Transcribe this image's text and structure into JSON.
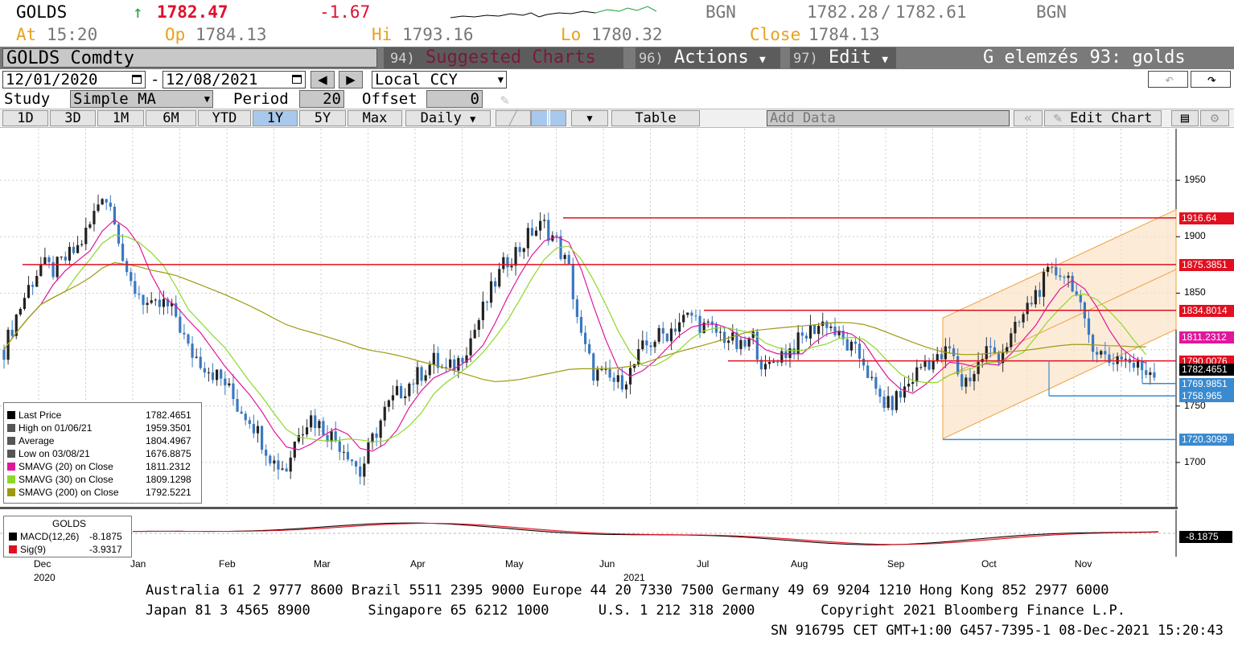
{
  "quote": {
    "ticker": "GOLDS",
    "arrow": "↑",
    "last": "1782.47",
    "change": "-1.67",
    "source1": "BGN",
    "bid": "1782.28",
    "slash": "/",
    "ask": "1782.61",
    "source2": "BGN",
    "at_label": "At",
    "at_value": "15:20",
    "op_label": "Op",
    "op_value": "1784.13",
    "hi_label": "Hi",
    "hi_value": "1793.16",
    "lo_label": "Lo",
    "lo_value": "1780.32",
    "close_label": "Close",
    "close_value": "1784.13"
  },
  "titlebar": {
    "security": "GOLDS Comdty",
    "suggested_num": "94)",
    "suggested_label": "Suggested Charts",
    "actions_num": "96)",
    "actions_label": "Actions",
    "edit_num": "97)",
    "edit_label": "Edit",
    "chart_name": "G elemzés 93: golds"
  },
  "controls": {
    "date_from": "12/01/2020",
    "date_sep": "-",
    "date_to": "12/08/2021",
    "currency": "Local CCY",
    "study_label": "Study",
    "study_value": "Simple MA",
    "period_label": "Period",
    "period_value": "20",
    "offset_label": "Offset",
    "offset_value": "0",
    "table_label": "Table",
    "add_data": "Add Data",
    "edit_chart": "Edit Chart",
    "frequency": "Daily"
  },
  "ranges": [
    "1D",
    "3D",
    "1M",
    "6M",
    "YTD",
    "1Y",
    "5Y",
    "Max"
  ],
  "selected_range": "1Y",
  "legend": {
    "rows": [
      {
        "label": "Last Price",
        "value": "1782.4651",
        "color": "#000000"
      },
      {
        "label": "High on 01/06/21",
        "value": "1959.3501",
        "color": "#555555"
      },
      {
        "label": "Average",
        "value": "1804.4967",
        "color": "#555555"
      },
      {
        "label": "Low on 03/08/21",
        "value": "1676.8875",
        "color": "#555555"
      },
      {
        "label": "SMAVG (20)  on Close",
        "value": "1811.2312",
        "color": "#e0179b"
      },
      {
        "label": "SMAVG (30)  on Close",
        "value": "1809.1298",
        "color": "#8ed82a"
      },
      {
        "label": "SMAVG (200)  on Close",
        "value": "1792.5221",
        "color": "#9e9a10"
      }
    ]
  },
  "macd_legend": {
    "title": "GOLDS",
    "macd_label": "MACD(12,26)",
    "macd_value": "-8.1875",
    "sig_label": "Sig(9)",
    "sig_value": "-3.9317",
    "tag": "-8.1875"
  },
  "chart_data": {
    "type": "candlestick",
    "y_ticks": [
      "1950",
      "1900",
      "1850",
      "1750",
      "1700"
    ],
    "ylim": [
      1665,
      1990
    ],
    "x_labels": [
      "Dec",
      "Jan",
      "Feb",
      "Mar",
      "Apr",
      "May",
      "Jun",
      "Jul",
      "Aug",
      "Sep",
      "Oct",
      "Nov"
    ],
    "x_year_labels": [
      "2020",
      "2021"
    ],
    "closes": [
      1800,
      1830,
      1855,
      1875,
      1870,
      1880,
      1890,
      1910,
      1940,
      1920,
      1860,
      1850,
      1835,
      1840,
      1830,
      1800,
      1790,
      1780,
      1770,
      1750,
      1740,
      1720,
      1700,
      1695,
      1730,
      1740,
      1730,
      1720,
      1710,
      1690,
      1720,
      1745,
      1760,
      1770,
      1780,
      1790,
      1780,
      1790,
      1810,
      1835,
      1860,
      1880,
      1890,
      1905,
      1910,
      1895,
      1870,
      1810,
      1780,
      1775,
      1770,
      1780,
      1800,
      1810,
      1815,
      1825,
      1830,
      1820,
      1815,
      1810,
      1800,
      1810,
      1780,
      1795,
      1800,
      1810,
      1820,
      1825,
      1810,
      1800,
      1790,
      1760,
      1750,
      1760,
      1775,
      1790,
      1790,
      1800,
      1770,
      1780,
      1800,
      1795,
      1810,
      1830,
      1850,
      1865,
      1870,
      1860,
      1820,
      1800,
      1790,
      1795,
      1785,
      1782
    ],
    "horizontal_levels": [
      {
        "value": "1916.64",
        "color": "#e01020"
      },
      {
        "value": "1875.3851",
        "color": "#e01020"
      },
      {
        "value": "1834.8014",
        "color": "#e01020"
      },
      {
        "value": "1811.2312",
        "color": "#e0179b"
      },
      {
        "value": "1790.0076",
        "color": "#e01020"
      },
      {
        "value": "1769.9851",
        "color": "#3a8ad0"
      },
      {
        "value": "1758.965",
        "color": "#3a8ad0"
      },
      {
        "value": "1720.3099",
        "color": "#3a8ad0"
      }
    ],
    "last_value": "1782.4651"
  },
  "footer": {
    "line1": "Australia 61 2 9777 8600 Brazil 5511 2395 9000 Europe 44 20 7330 7500 Germany 49 69 9204 1210 Hong Kong 852 2977 6000",
    "line2": "Japan 81 3 4565 8900       Singapore 65 6212 1000      U.S. 1 212 318 2000        Copyright 2021 Bloomberg Finance L.P.",
    "line3": "SN 916795 CET  GMT+1:00 G457-7395-1 08-Dec-2021 15:20:43"
  }
}
